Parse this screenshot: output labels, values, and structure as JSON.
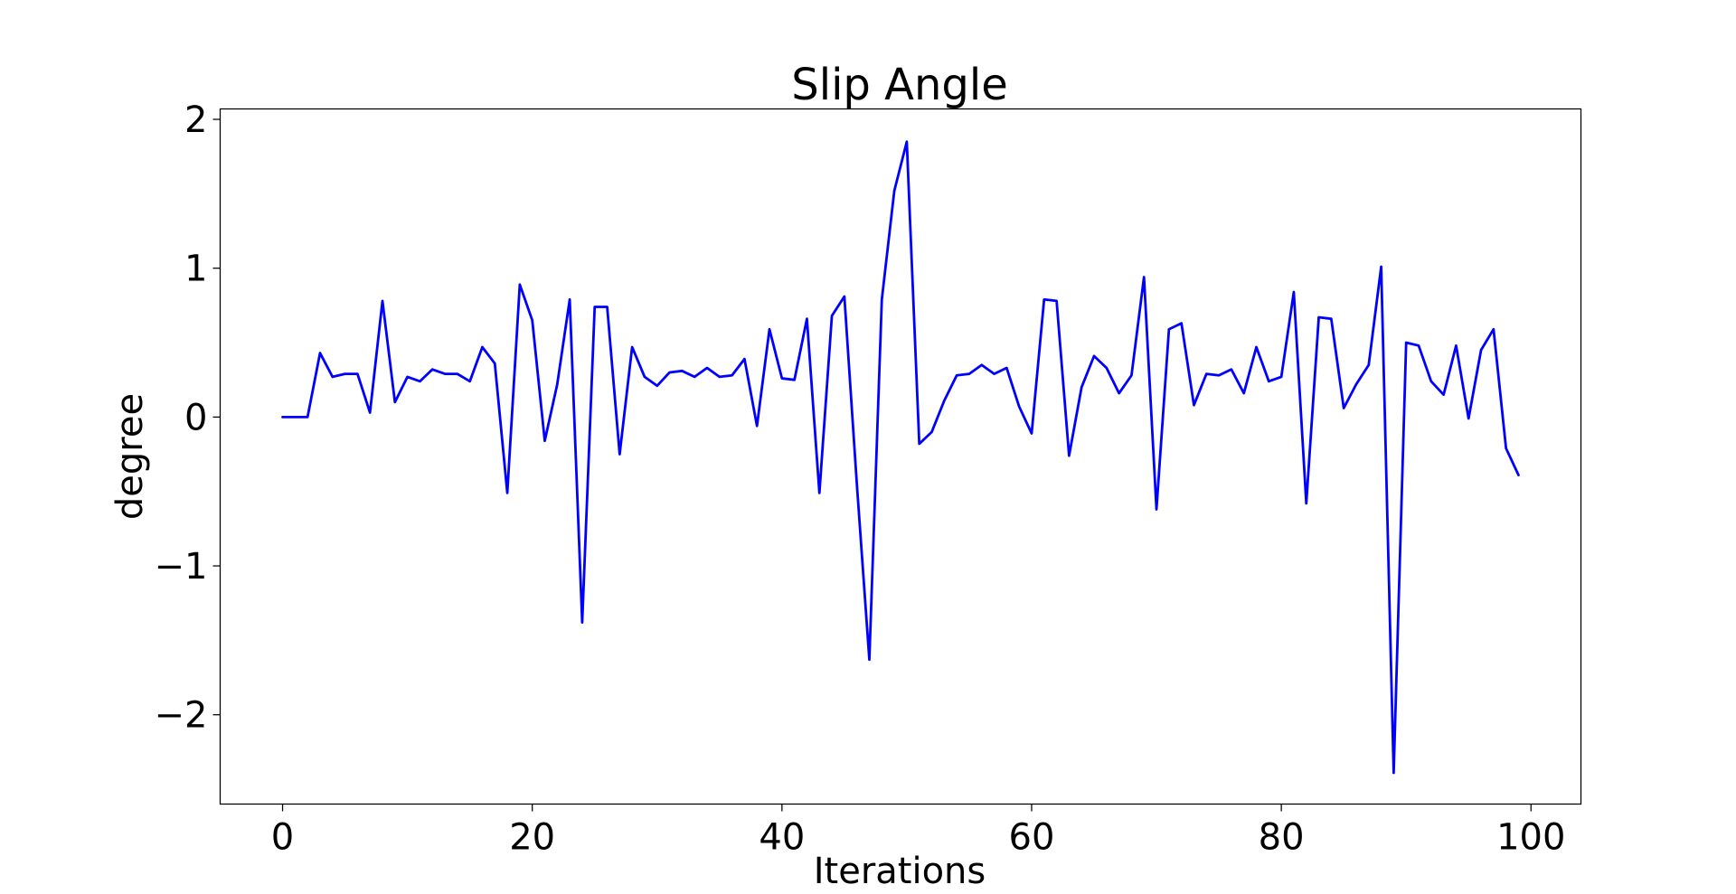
{
  "chart_data": {
    "type": "line",
    "title": "Slip Angle",
    "xlabel": "Iterations",
    "ylabel": "degree",
    "xlim": [
      -5,
      104
    ],
    "ylim": [
      -2.6,
      2.07
    ],
    "xticks": [
      0,
      20,
      40,
      60,
      80,
      100
    ],
    "yticks": [
      -2,
      -1,
      0,
      1,
      2
    ],
    "xtick_labels": [
      "0",
      "20",
      "40",
      "60",
      "80",
      "100"
    ],
    "ytick_labels": [
      "−2",
      "−1",
      "0",
      "1",
      "2"
    ],
    "grid": false,
    "legend": "none",
    "series": [
      {
        "color": "#0000ff",
        "x": [
          0,
          1,
          2,
          3,
          4,
          5,
          6,
          7,
          8,
          9,
          10,
          11,
          12,
          13,
          14,
          15,
          16,
          17,
          18,
          19,
          20,
          21,
          22,
          23,
          24,
          25,
          26,
          27,
          28,
          29,
          30,
          31,
          32,
          33,
          34,
          35,
          36,
          37,
          38,
          39,
          40,
          41,
          42,
          43,
          44,
          45,
          46,
          47,
          48,
          49,
          50,
          51,
          52,
          53,
          54,
          55,
          56,
          57,
          58,
          59,
          60,
          61,
          62,
          63,
          64,
          65,
          66,
          67,
          68,
          69,
          70,
          71,
          72,
          73,
          74,
          75,
          76,
          77,
          78,
          79,
          80,
          81,
          82,
          83,
          84,
          85,
          86,
          87,
          88,
          89,
          90,
          91,
          92,
          93,
          94,
          95,
          96,
          97,
          98,
          99
        ],
        "values": [
          0.0,
          0.0,
          0.0,
          0.43,
          0.27,
          0.29,
          0.29,
          0.03,
          0.78,
          0.1,
          0.27,
          0.24,
          0.32,
          0.29,
          0.29,
          0.24,
          0.47,
          0.36,
          -0.51,
          0.89,
          0.65,
          -0.16,
          0.22,
          0.79,
          -1.38,
          0.74,
          0.74,
          -0.25,
          0.47,
          0.27,
          0.21,
          0.3,
          0.31,
          0.27,
          0.33,
          0.27,
          0.28,
          0.39,
          -0.06,
          0.59,
          0.26,
          0.25,
          0.66,
          -0.51,
          0.68,
          0.81,
          -0.45,
          -1.63,
          0.79,
          1.52,
          1.85,
          -0.18,
          -0.1,
          0.11,
          0.28,
          0.29,
          0.35,
          0.29,
          0.33,
          0.07,
          -0.11,
          0.79,
          0.78,
          -0.26,
          0.2,
          0.41,
          0.33,
          0.16,
          0.28,
          0.94,
          -0.62,
          0.59,
          0.63,
          0.08,
          0.29,
          0.28,
          0.32,
          0.16,
          0.47,
          0.24,
          0.27,
          0.84,
          -0.58,
          0.67,
          0.66,
          0.06,
          0.22,
          0.35,
          1.01,
          -2.39,
          0.5,
          0.48,
          0.24,
          0.15,
          0.48,
          -0.01,
          0.45,
          0.59,
          -0.21,
          -0.39
        ]
      }
    ]
  }
}
